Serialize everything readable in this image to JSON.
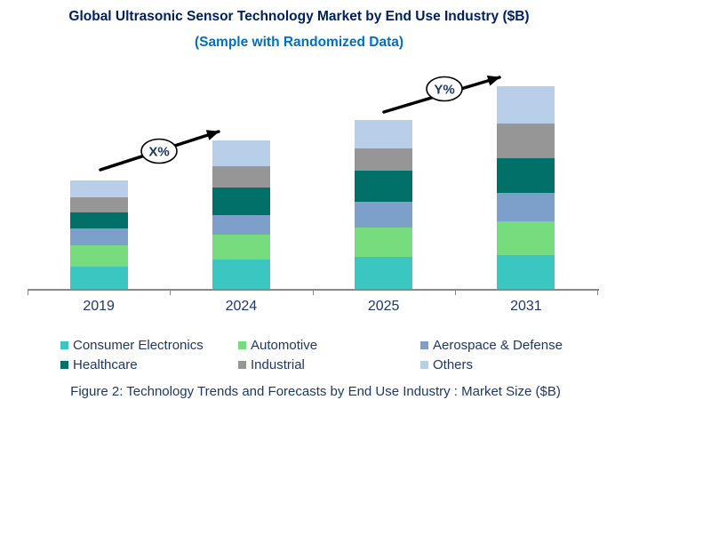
{
  "header": {
    "title": "Global Ultrasonic Sensor Technology Market by End Use Industry ($B)",
    "subtitle": "(Sample with Randomized Data)"
  },
  "caption": "Figure 2: Technology Trends and Forecasts by End Use Industry : Market Size ($B)",
  "colors": {
    "title_text": "#002060",
    "subtitle_text": "#0070C0",
    "body_text": "#1F3864",
    "axis_line": "#898989",
    "arrow": "#000000",
    "annotation_bubble_fill": "#FFFFFF",
    "annotation_bubble_border": "#000000"
  },
  "chart_data": {
    "type": "bar",
    "stacked": true,
    "title": "Global Ultrasonic Sensor Technology Market by End Use Industry ($B)",
    "subtitle": "(Sample with Randomized Data)",
    "categories": [
      "2019",
      "2024",
      "2025",
      "2031"
    ],
    "series": [
      {
        "name": "Consumer Electronics",
        "color": "#3BC6C2",
        "values": [
          25,
          33,
          36,
          38
        ]
      },
      {
        "name": "Automotive",
        "color": "#77DC7D",
        "values": [
          24,
          28,
          33,
          38
        ]
      },
      {
        "name": "Aerospace & Defense",
        "color": "#7CA0C9",
        "values": [
          19,
          22,
          29,
          32
        ]
      },
      {
        "name": "Healthcare",
        "color": "#007069",
        "values": [
          18,
          31,
          35,
          39
        ]
      },
      {
        "name": "Industrial",
        "color": "#969696",
        "values": [
          17,
          24,
          25,
          39
        ]
      },
      {
        "name": "Others",
        "color": "#B9CFE9",
        "values": [
          19,
          29,
          32,
          42
        ]
      }
    ],
    "stack_totals": [
      122,
      167,
      190,
      228
    ],
    "xlabel": "",
    "ylabel": "",
    "ylim": [
      0,
      250
    ],
    "y_axis_visible": false,
    "grid": false,
    "legend_position": "bottom",
    "annotations": [
      {
        "label": "X%",
        "type": "growth-arrow",
        "from_category": "2019",
        "to_category": "2024"
      },
      {
        "label": "Y%",
        "type": "growth-arrow",
        "from_category": "2025",
        "to_category": "2031"
      }
    ]
  }
}
